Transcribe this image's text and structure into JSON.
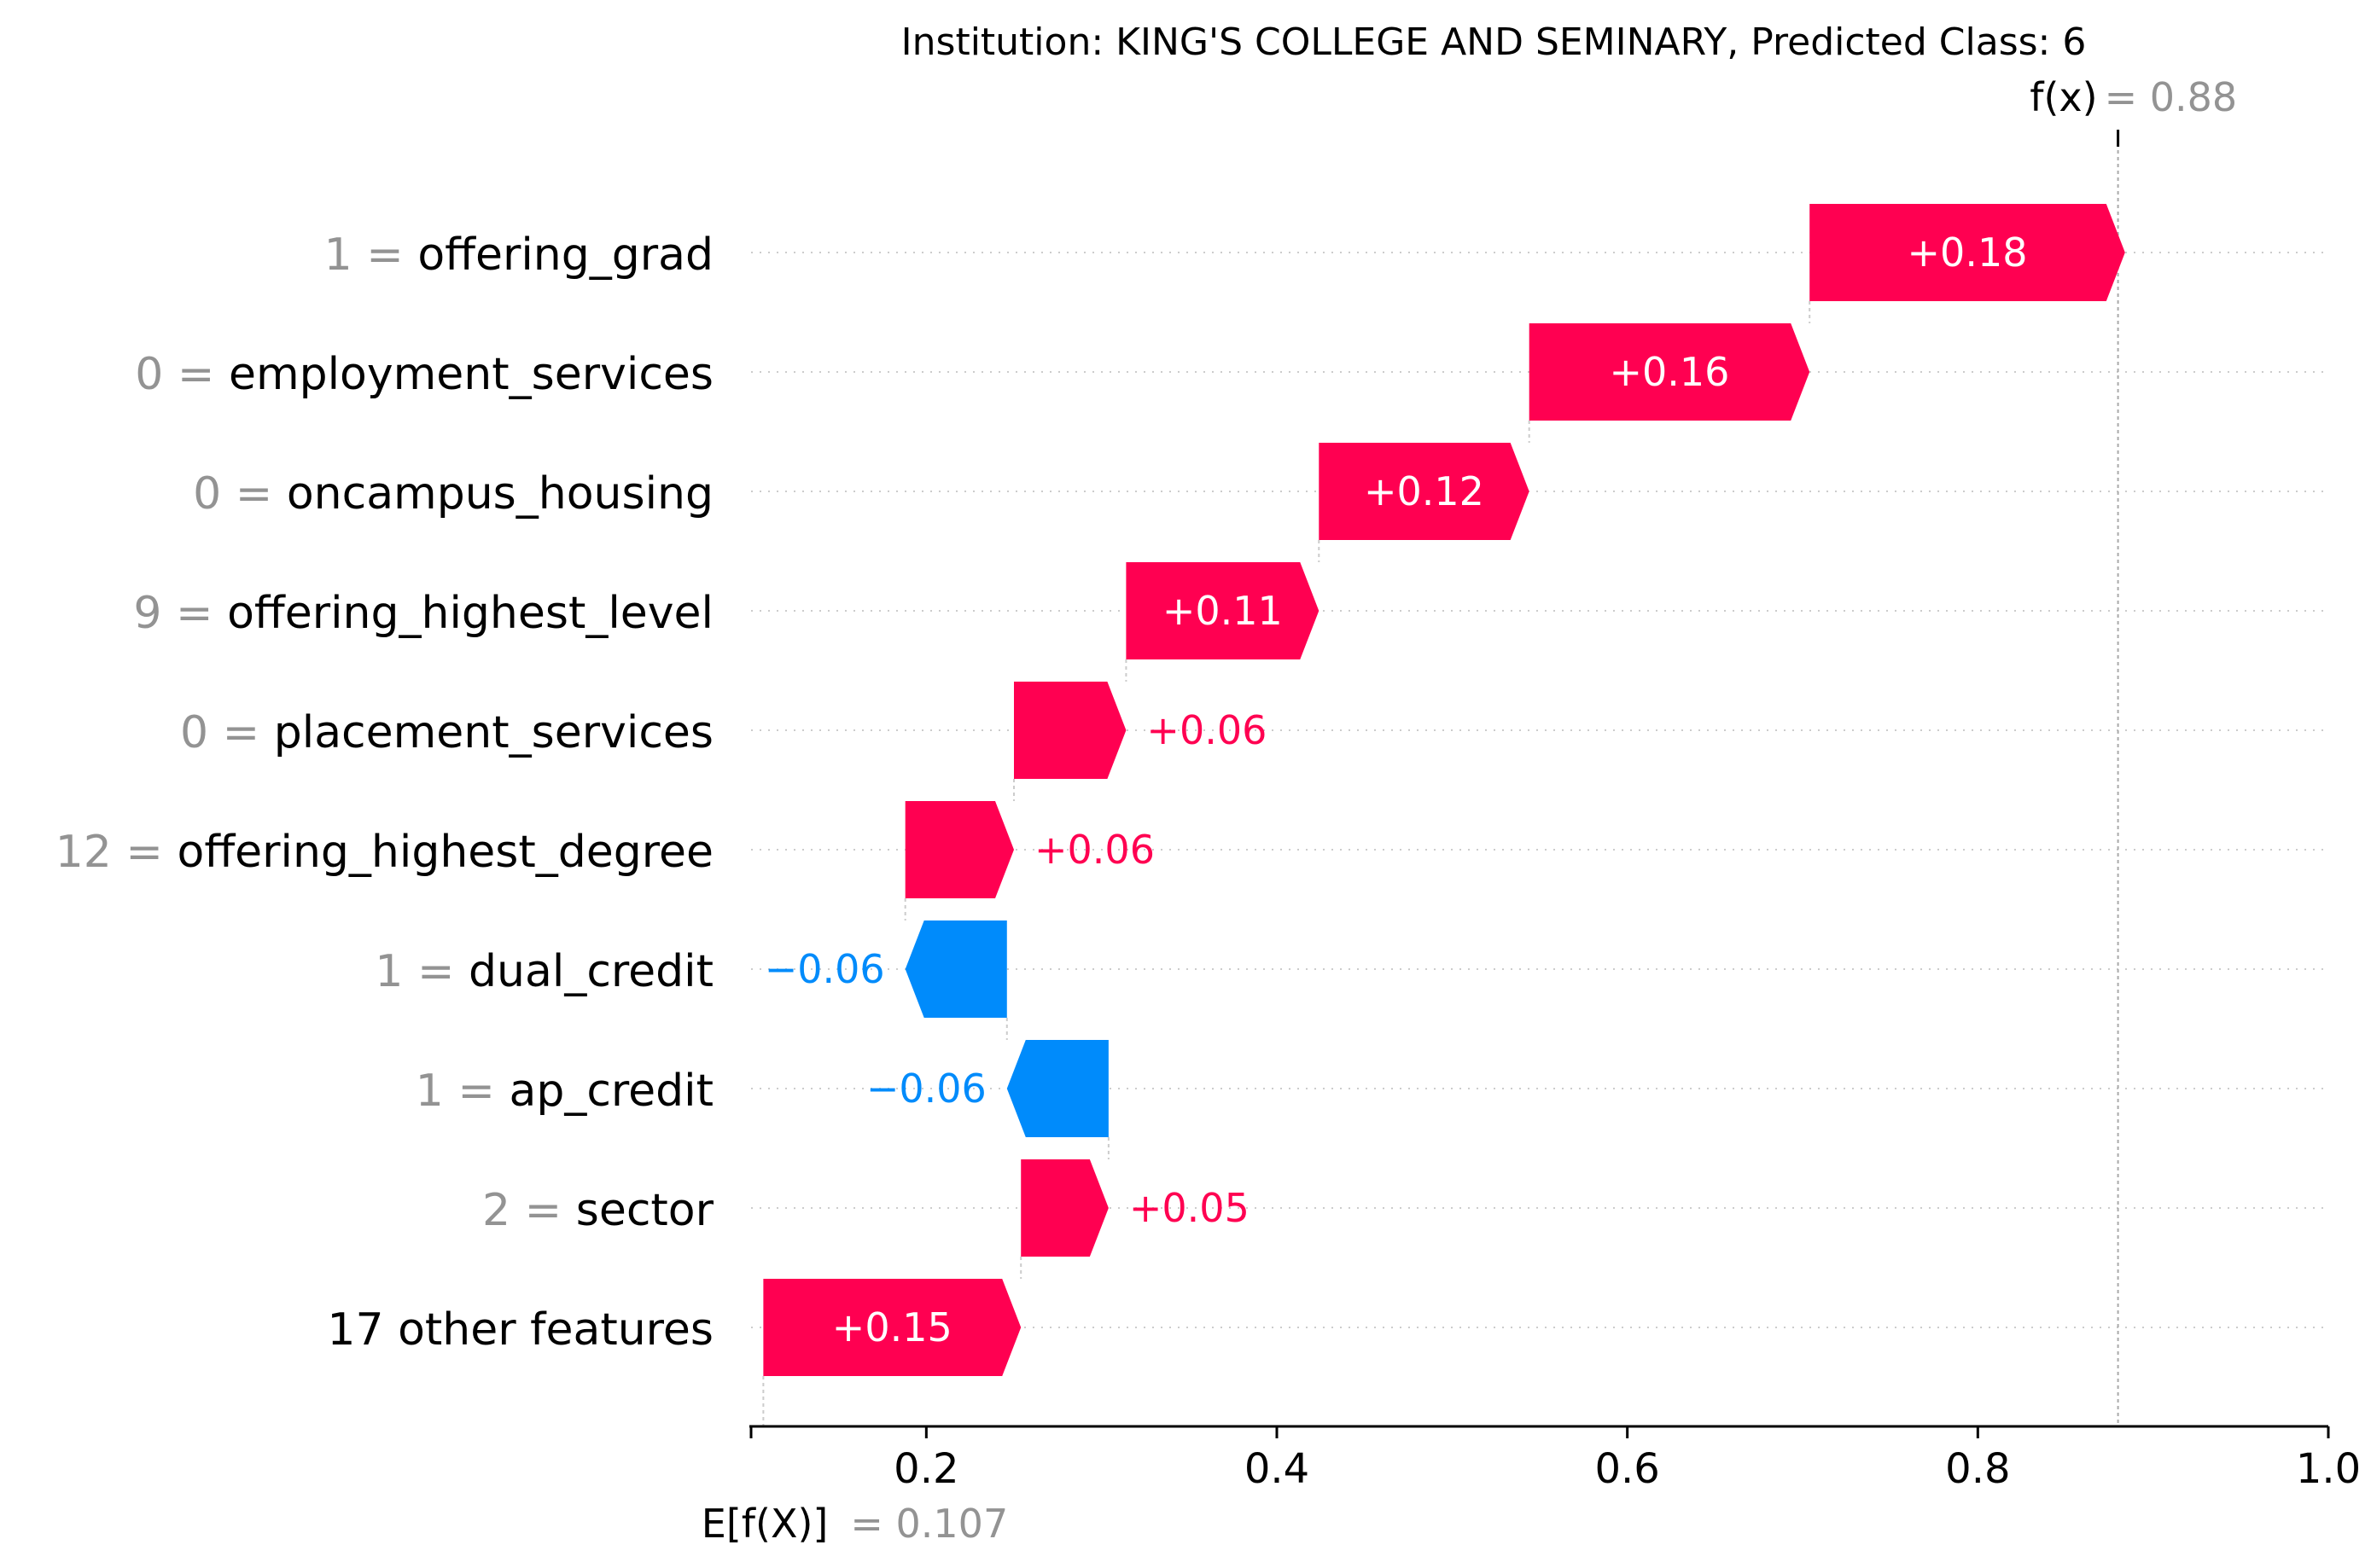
{
  "chart_data": {
    "type": "waterfall",
    "title": "Institution: KING'S COLLEGE AND SEMINARY, Predicted Class: 6",
    "features": [
      {
        "value": "1",
        "name": "offering_grad",
        "contribution": 0.18,
        "label": "+0.18"
      },
      {
        "value": "0",
        "name": "employment_services",
        "contribution": 0.16,
        "label": "+0.16"
      },
      {
        "value": "0",
        "name": "oncampus_housing",
        "contribution": 0.12,
        "label": "+0.12"
      },
      {
        "value": "9",
        "name": "offering_highest_level",
        "contribution": 0.11,
        "label": "+0.11"
      },
      {
        "value": "0",
        "name": "placement_services",
        "contribution": 0.064,
        "label": "+0.06"
      },
      {
        "value": "12",
        "name": "offering_highest_degree",
        "contribution": 0.062,
        "label": "+0.06"
      },
      {
        "value": "1",
        "name": "dual_credit",
        "contribution": -0.058,
        "label": "−0.06"
      },
      {
        "value": "1",
        "name": "ap_credit",
        "contribution": -0.058,
        "label": "−0.06"
      },
      {
        "value": "2",
        "name": "sector",
        "contribution": 0.05,
        "label": "+0.05"
      },
      {
        "value": "",
        "name": "17 other features",
        "contribution": 0.147,
        "label": "+0.15"
      }
    ],
    "base_value": 0.107,
    "base_label": "E[f(X)]",
    "base_value_text": "= 0.107",
    "output_value": 0.88,
    "output_label": "f(x)",
    "output_value_text": "= 0.88",
    "xlim": [
      0.1,
      1.0
    ],
    "xticks": [
      0.2,
      0.4,
      0.6,
      0.8,
      1.0
    ],
    "xtick_labels": [
      "0.2",
      "0.4",
      "0.6",
      "0.8",
      "1.0"
    ],
    "colors": {
      "positive": "#ff0051",
      "negative": "#008bfb",
      "gridline": "#cccccc",
      "value_text": "#939393"
    }
  }
}
